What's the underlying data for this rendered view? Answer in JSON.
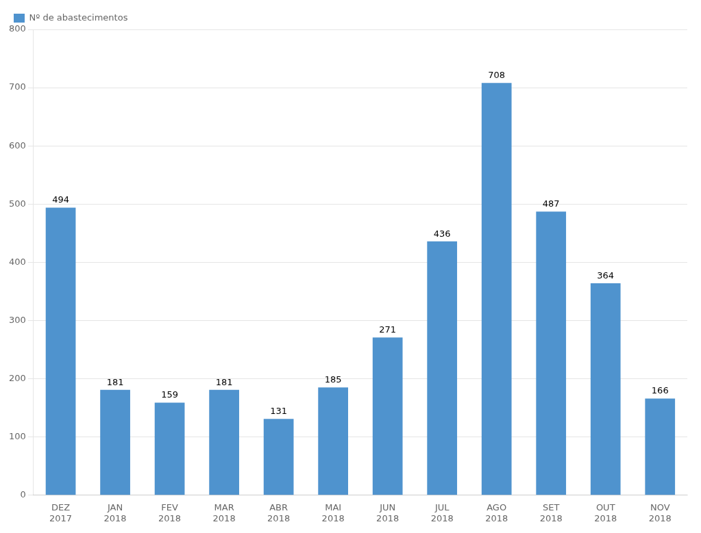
{
  "chart_data": {
    "type": "bar",
    "categories": [
      "DEZ\n2017",
      "JAN\n2018",
      "FEV\n2018",
      "MAR\n2018",
      "ABR\n2018",
      "MAI\n2018",
      "JUN\n2018",
      "JUL\n2018",
      "AGO\n2018",
      "SET\n2018",
      "OUT\n2018",
      "NOV\n2018"
    ],
    "series": [
      {
        "name": "Nº de abastecimentos",
        "color": "#4f93ce",
        "values": [
          494,
          181,
          159,
          181,
          131,
          185,
          271,
          436,
          708,
          487,
          364,
          166
        ]
      }
    ],
    "ylim": [
      0,
      800
    ],
    "yticks": [
      0,
      100,
      200,
      300,
      400,
      500,
      600,
      700,
      800
    ],
    "grid": true,
    "legend": "upper left",
    "data_labels": true
  }
}
